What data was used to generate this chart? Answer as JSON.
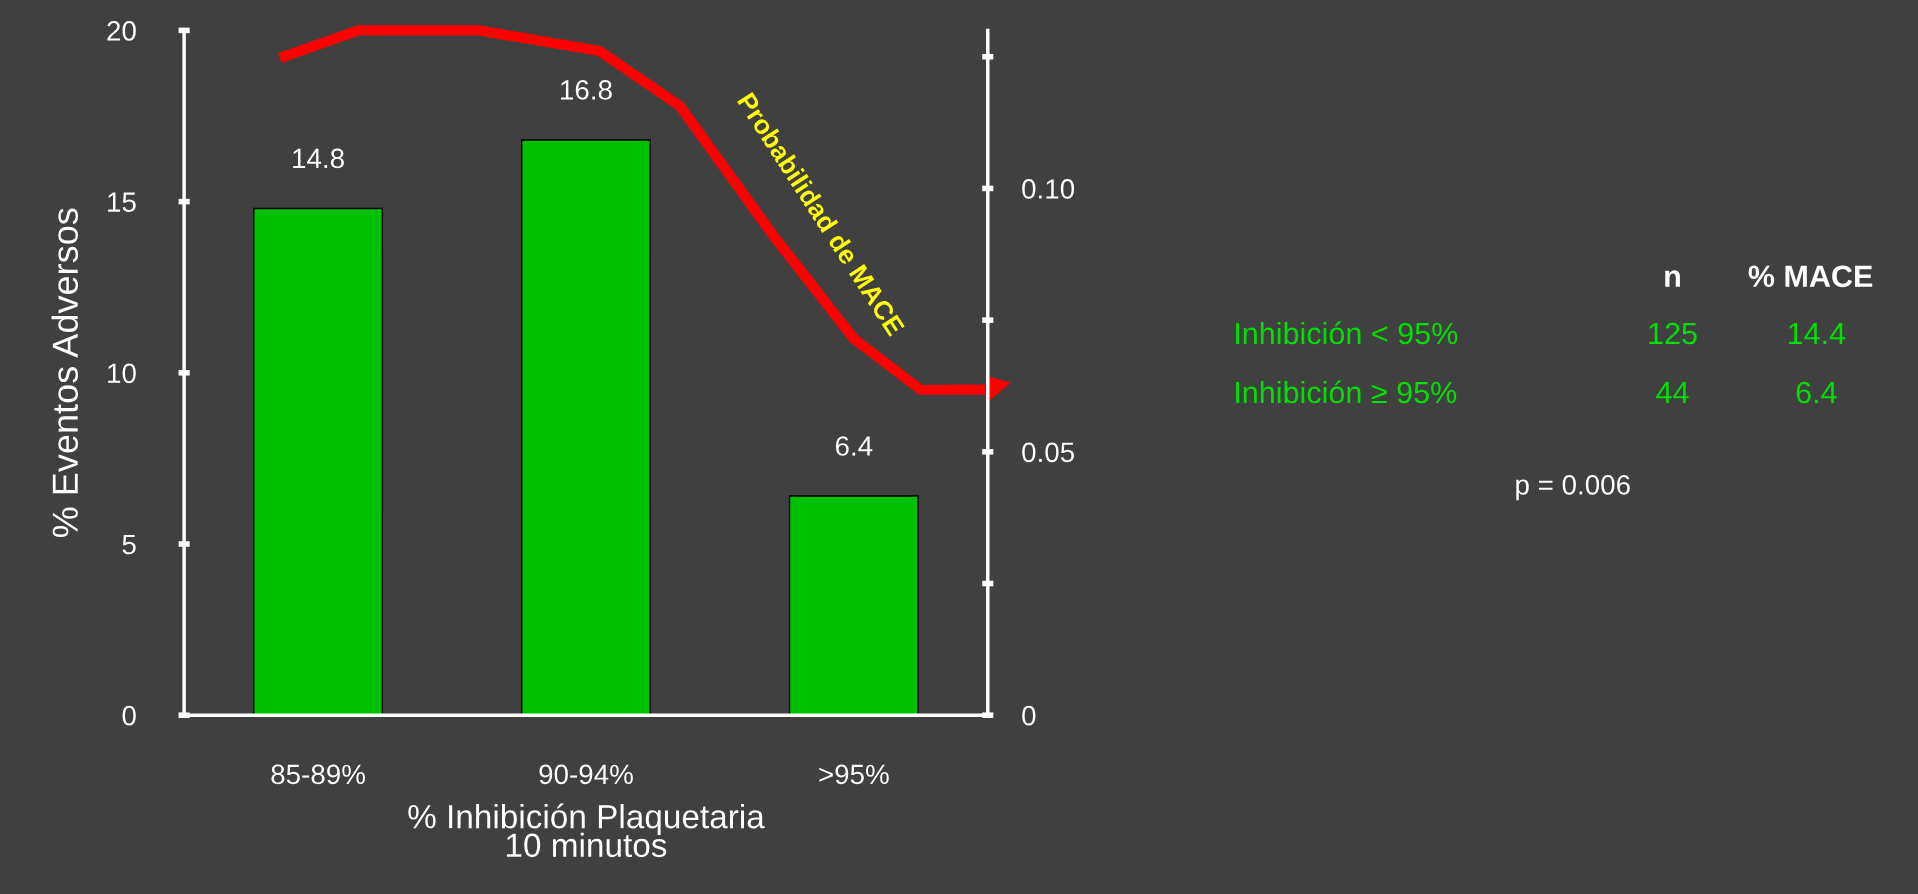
{
  "chart_data": {
    "type": "bar",
    "xlabel": "% Inhibición Plaquetaria\n10 minutos",
    "ylabel": "% Eventos Adversos",
    "categories": [
      "85-89%",
      "90-94%",
      ">95%"
    ],
    "series": [
      {
        "color": "#00c000",
        "values": [
          14.8,
          16.8,
          6.4
        ]
      }
    ],
    "data_labels": true,
    "ylim": [
      0,
      20
    ],
    "yticks": [
      0,
      5,
      10,
      15,
      20
    ],
    "y2lim": [
      0,
      0.13
    ],
    "y2ticks": [
      0,
      {
        "value": 0.025,
        "label": null
      },
      0.05,
      {
        "value": 0.075,
        "label": null
      },
      {
        "value": 0.1,
        "label": "0.10"
      },
      {
        "value": 0.125,
        "label": null
      }
    ],
    "grid": false,
    "legend": false,
    "annotations": [
      "Probabilidad de MACE",
      "n",
      "% MACE",
      "Inhibición < 95%",
      "125",
      "14.4",
      "Inhibición ≥ 95%",
      "44",
      "6.4",
      "p = 0.006"
    ]
  }
}
